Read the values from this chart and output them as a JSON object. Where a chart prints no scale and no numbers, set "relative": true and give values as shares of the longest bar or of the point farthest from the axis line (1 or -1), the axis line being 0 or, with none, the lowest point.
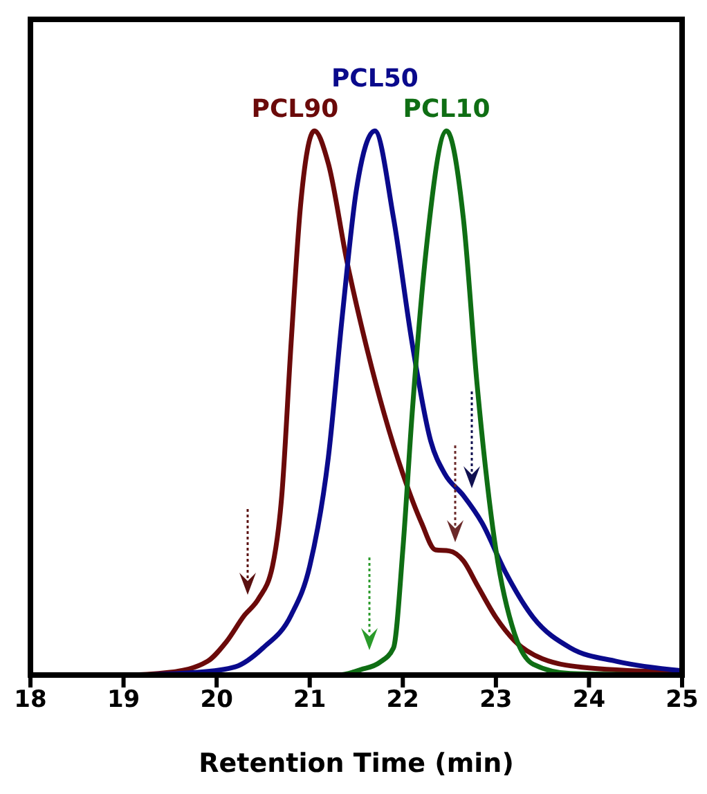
{
  "chart_data": {
    "type": "line",
    "relative": true,
    "xlabel": "Retention Time (min)",
    "xlim": [
      18,
      25
    ],
    "xticks": [
      18,
      19,
      20,
      21,
      22,
      23,
      24,
      25
    ],
    "marker": "none",
    "line_style": "solid",
    "grid": false,
    "legend": false,
    "series": [
      {
        "name": "PCL90",
        "color": "#6b0a0a",
        "x": [
          18,
          19,
          19.5,
          19.9,
          20.1,
          20.3,
          20.45,
          20.6,
          20.7,
          20.8,
          20.9,
          21.05,
          21.2,
          21.4,
          21.6,
          21.8,
          22,
          22.2,
          22.35,
          22.5,
          22.65,
          22.8,
          23,
          23.2,
          23.5,
          24,
          25
        ],
        "values": [
          0,
          0,
          0.005,
          0.025,
          0.06,
          0.11,
          0.14,
          0.2,
          0.33,
          0.61,
          0.86,
          1,
          0.94,
          0.76,
          0.61,
          0.48,
          0.37,
          0.28,
          0.23,
          0.228,
          0.21,
          0.165,
          0.106,
          0.063,
          0.03,
          0.013,
          0.005
        ]
      },
      {
        "name": "PCL50",
        "color": "#0a0a8c",
        "x": [
          18,
          19,
          19.8,
          20.2,
          20.5,
          20.8,
          21,
          21.2,
          21.35,
          21.5,
          21.7,
          21.9,
          22.1,
          22.3,
          22.45,
          22.65,
          22.85,
          23.1,
          23.4,
          23.8,
          24.3,
          25
        ],
        "values": [
          0,
          0,
          0.005,
          0.015,
          0.05,
          0.11,
          0.2,
          0.4,
          0.66,
          0.89,
          1,
          0.84,
          0.61,
          0.43,
          0.37,
          0.33,
          0.28,
          0.19,
          0.106,
          0.05,
          0.025,
          0.008
        ]
      },
      {
        "name": "PCL10",
        "color": "#0f6e14",
        "x": [
          18,
          21.3,
          21.55,
          21.75,
          21.9,
          22,
          22.1,
          22.25,
          22.47,
          22.65,
          22.8,
          23,
          23.2,
          23.4,
          23.8,
          25
        ],
        "values": [
          0,
          0,
          0.01,
          0.023,
          0.05,
          0.23,
          0.48,
          0.78,
          1,
          0.84,
          0.53,
          0.23,
          0.076,
          0.02,
          0.003,
          0
        ]
      }
    ]
  }
}
